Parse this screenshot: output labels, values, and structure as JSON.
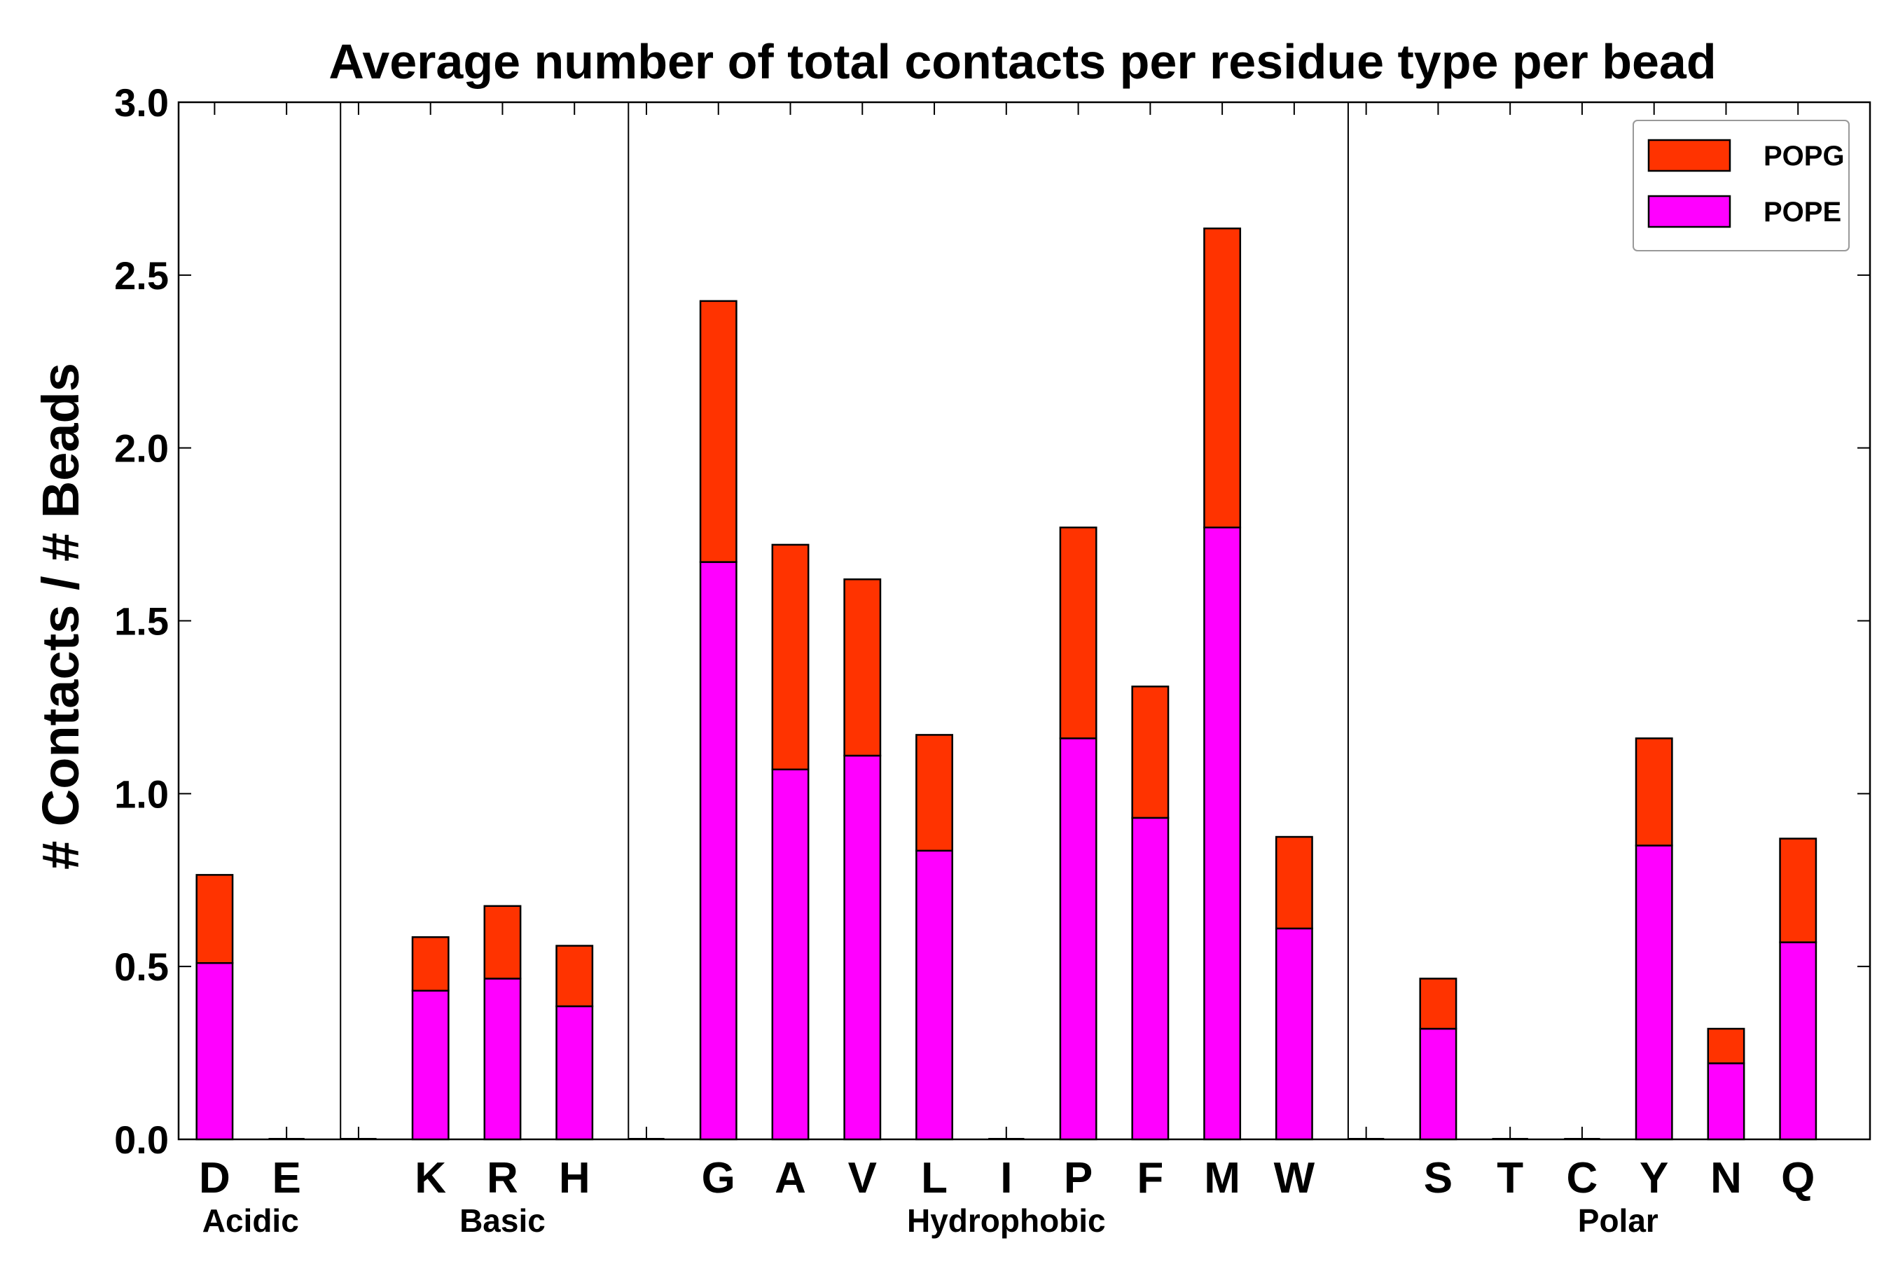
{
  "chart_data": {
    "type": "bar",
    "stacked": true,
    "title": "Average number of total contacts per residue type per bead",
    "xlabel": "",
    "ylabel": "# Contacts / # Beads",
    "ylim": [
      0,
      3.0
    ],
    "yticks": [
      "0.0",
      "0.5",
      "1.0",
      "1.5",
      "2.0",
      "2.5",
      "3.0"
    ],
    "grid": false,
    "legend_position": "top-right",
    "slots": [
      "D",
      "E",
      "",
      "K",
      "R",
      "H",
      "",
      "G",
      "A",
      "V",
      "L",
      "I",
      "P",
      "F",
      "M",
      "W",
      "",
      "S",
      "T",
      "C",
      "Y",
      "N",
      "Q"
    ],
    "categories": [
      "D",
      "E",
      "K",
      "R",
      "H",
      "G",
      "A",
      "V",
      "L",
      "I",
      "P",
      "F",
      "M",
      "W",
      "S",
      "T",
      "C",
      "Y",
      "N",
      "Q"
    ],
    "series": [
      {
        "name": "POPE",
        "color": "#ff00ff",
        "values": [
          0.51,
          0.0,
          0.43,
          0.465,
          0.385,
          1.67,
          1.07,
          1.11,
          0.835,
          0.0,
          1.16,
          0.93,
          1.77,
          0.61,
          0.32,
          0.0,
          0.0,
          0.85,
          0.22,
          0.57
        ]
      },
      {
        "name": "POPG",
        "color": "#ff3300",
        "values": [
          0.255,
          0.0,
          0.155,
          0.21,
          0.175,
          0.755,
          0.65,
          0.51,
          0.335,
          0.0,
          0.61,
          0.38,
          0.865,
          0.265,
          0.145,
          0.0,
          0.0,
          0.31,
          0.1,
          0.3
        ]
      }
    ],
    "legend_order": [
      "POPG",
      "POPE"
    ],
    "groups": [
      {
        "name": "Acidic",
        "members": [
          "D",
          "E"
        ]
      },
      {
        "name": "Basic",
        "members": [
          "K",
          "R",
          "H"
        ]
      },
      {
        "name": "Hydrophobic",
        "members": [
          "G",
          "A",
          "V",
          "L",
          "I",
          "P",
          "F",
          "M",
          "W"
        ]
      },
      {
        "name": "Polar",
        "members": [
          "S",
          "T",
          "C",
          "Y",
          "N",
          "Q"
        ]
      }
    ],
    "separators_after_slot": [
      2,
      6,
      16
    ]
  }
}
